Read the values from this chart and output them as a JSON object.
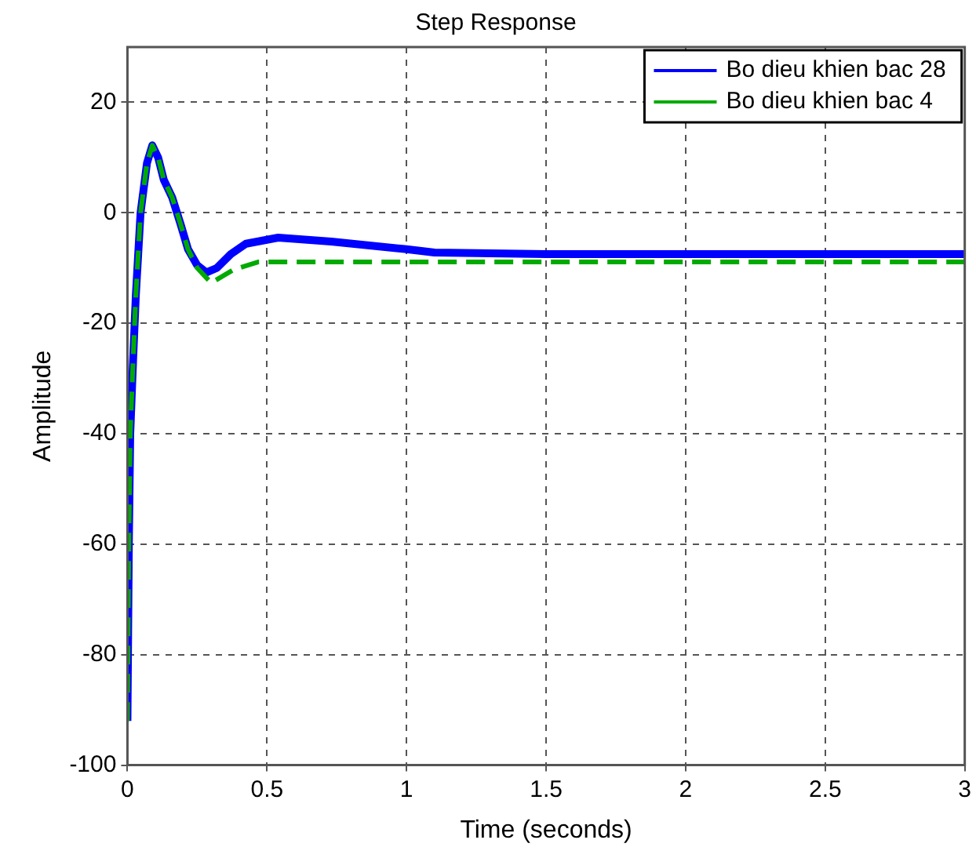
{
  "chart_data": {
    "type": "line",
    "title": "Step Response",
    "xlabel": "Time (seconds)",
    "ylabel": "Amplitude",
    "xlim": [
      0,
      3
    ],
    "xticks": [
      0,
      0.5,
      1,
      1.5,
      2,
      2.5,
      3
    ],
    "ylim": [
      -100,
      30
    ],
    "yticks": [
      -100,
      -80,
      -60,
      -40,
      -20,
      0,
      20
    ],
    "grid": true,
    "legend": "top right",
    "marker": "none",
    "series": [
      {
        "name": "Bo dieu khien bac 28",
        "color": "#0000ff",
        "line_style": "solid",
        "x": [
          0,
          0.005,
          0.01,
          0.02,
          0.03,
          0.047,
          0.07,
          0.089,
          0.11,
          0.13,
          0.16,
          0.19,
          0.217,
          0.25,
          0.283,
          0.32,
          0.37,
          0.425,
          0.54,
          0.73,
          1.0,
          1.1,
          1.5,
          3
        ],
        "values": [
          -92,
          -60,
          -40,
          -27,
          -15,
          0,
          9,
          12.2,
          10,
          6,
          2.8,
          -2,
          -6.6,
          -9.5,
          -10.8,
          -10,
          -7.5,
          -5.6,
          -4.5,
          -5.2,
          -6.6,
          -7.2,
          -7.5,
          -7.5
        ]
      },
      {
        "name": "Bo dieu khien bac 4",
        "color": "#00aa00",
        "line_style": "dashed",
        "x": [
          0,
          0.005,
          0.01,
          0.02,
          0.03,
          0.047,
          0.07,
          0.089,
          0.11,
          0.13,
          0.16,
          0.19,
          0.217,
          0.25,
          0.3,
          0.38,
          0.47,
          3
        ],
        "values": [
          -92,
          -60,
          -40,
          -27,
          -15,
          0,
          9,
          12.2,
          10,
          6,
          2.8,
          -2,
          -6.6,
          -10,
          -12.7,
          -10.3,
          -8.9,
          -8.9
        ]
      }
    ]
  }
}
